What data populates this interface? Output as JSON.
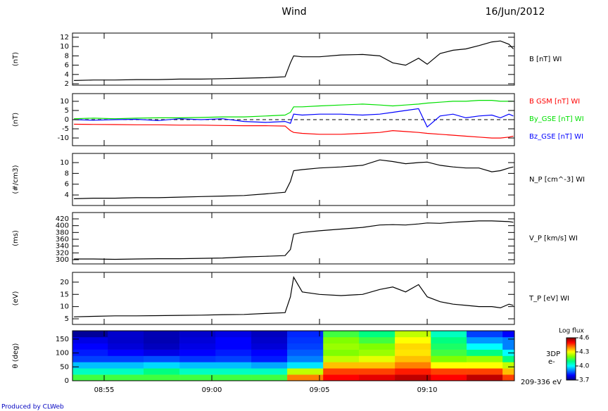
{
  "title": "Wind",
  "date": "16/Jun/2012",
  "footer": "Produced by CLWeb",
  "chart_data": [
    {
      "type": "line",
      "ylabel": "(nT)",
      "xlim": [
        533.53,
        554.05
      ],
      "ylim": [
        1.7,
        12.9
      ],
      "yticks": [
        2,
        4,
        6,
        8,
        10,
        12
      ],
      "x": [
        533.6,
        534.5,
        535.5,
        536.5,
        537.5,
        538.5,
        539.5,
        540.5,
        541.5,
        542.5,
        543.4,
        543.65,
        543.8,
        544.2,
        545,
        546,
        547,
        547.8,
        548.4,
        549,
        549.6,
        550,
        550.6,
        551.2,
        551.8,
        552.4,
        553,
        553.4,
        553.8,
        554
      ],
      "series": [
        {
          "name": "B [nT] WI",
          "color": "#000000",
          "values": [
            2.7,
            2.8,
            2.8,
            2.9,
            2.9,
            3,
            3,
            3.1,
            3.2,
            3.3,
            3.5,
            6.5,
            8,
            7.8,
            7.8,
            8.2,
            8.3,
            8,
            6.5,
            6,
            7.5,
            6.2,
            8.5,
            9.2,
            9.5,
            10.2,
            11,
            11.2,
            10.5,
            9.5
          ]
        }
      ]
    },
    {
      "type": "line",
      "ylabel": "(nT)",
      "xlim": [
        533.53,
        554.05
      ],
      "ylim": [
        -14.2,
        14.2
      ],
      "yticks": [
        -10,
        -5,
        0,
        5,
        10
      ],
      "reference_line": 0,
      "x": [
        533.6,
        534.5,
        535.5,
        536.5,
        537.5,
        538.5,
        539.5,
        540.5,
        541.5,
        542.5,
        543.4,
        543.65,
        543.8,
        544.2,
        545,
        546,
        547,
        547.8,
        548.4,
        549,
        549.6,
        550,
        550.6,
        551.2,
        551.8,
        552.4,
        553,
        553.4,
        553.8,
        554
      ],
      "series": [
        {
          "name": "B GSM [nT] WI",
          "color": "#ff0000",
          "values": [
            -2.5,
            -2.6,
            -2.7,
            -2.8,
            -2.8,
            -3,
            -3,
            -3.2,
            -3.3,
            -3.3,
            -3.5,
            -6,
            -7,
            -7.5,
            -8,
            -8,
            -7.5,
            -7,
            -6,
            -6.5,
            -7,
            -7.5,
            -8,
            -8.5,
            -9,
            -9.5,
            -10,
            -10,
            -9.5,
            -9
          ]
        },
        {
          "name": "By_GSE [nT] WI",
          "color": "#00e000",
          "values": [
            0.5,
            0.8,
            0.5,
            0.8,
            1,
            1,
            1.2,
            1.5,
            1.5,
            2,
            2.5,
            4,
            7,
            7,
            7.5,
            8,
            8.5,
            8,
            7.5,
            8,
            8.5,
            9,
            9.5,
            10,
            10,
            10.5,
            10.5,
            10,
            10,
            10
          ]
        },
        {
          "name": "Bz_GSE [nT] WI",
          "color": "#0000ff",
          "values": [
            0,
            -0.3,
            0,
            0.2,
            -0.5,
            0.5,
            0,
            0.5,
            -1,
            -1.5,
            -1,
            -2,
            3,
            2.5,
            3,
            3,
            2.5,
            3,
            4,
            5,
            6,
            -4,
            2,
            3,
            1,
            2,
            2.5,
            1,
            3,
            2
          ]
        }
      ]
    },
    {
      "type": "line",
      "ylabel": "(#/cm3)",
      "xlim": [
        533.53,
        554.05
      ],
      "ylim": [
        2.05,
        11.7
      ],
      "yticks": [
        4,
        6,
        8,
        10
      ],
      "x": [
        533.6,
        534.5,
        535.5,
        536.5,
        537.5,
        538.5,
        539.5,
        540.5,
        541.5,
        542.5,
        543.4,
        543.65,
        543.8,
        544.2,
        545,
        546,
        547,
        547.8,
        548.4,
        549,
        549.6,
        550,
        550.6,
        551.2,
        551.8,
        552.4,
        553,
        553.4,
        553.8,
        554
      ],
      "series": [
        {
          "name": "N_P [cm^-3] WI",
          "color": "#000000",
          "values": [
            3.3,
            3.4,
            3.4,
            3.5,
            3.5,
            3.6,
            3.7,
            3.8,
            3.9,
            4.2,
            4.5,
            6.5,
            8.5,
            8.7,
            9,
            9.2,
            9.5,
            10.5,
            10.2,
            9.8,
            10,
            10.1,
            9.5,
            9.2,
            9,
            9,
            8.3,
            8.5,
            9,
            9.2
          ]
        }
      ]
    },
    {
      "type": "line",
      "ylabel": "(ms)",
      "xlim": [
        533.53,
        554.05
      ],
      "ylim": [
        287.6,
        438.6
      ],
      "yticks": [
        300,
        320,
        340,
        360,
        380,
        400,
        420
      ],
      "x": [
        533.6,
        534.5,
        535.5,
        536.5,
        537.5,
        538.5,
        539.5,
        540.5,
        541.5,
        542.5,
        543.4,
        543.65,
        543.8,
        544.2,
        545,
        546,
        547,
        547.8,
        548.4,
        549,
        549.6,
        550,
        550.6,
        551.2,
        551.8,
        552.4,
        553,
        553.4,
        553.8,
        554
      ],
      "series": [
        {
          "name": "V_P [km/s] WI",
          "color": "#000000",
          "values": [
            302,
            302,
            301,
            302,
            303,
            303,
            304,
            305,
            308,
            310,
            312,
            330,
            375,
            380,
            385,
            390,
            395,
            402,
            403,
            402,
            405,
            408,
            407,
            410,
            412,
            414,
            414,
            413,
            412,
            410
          ]
        }
      ]
    },
    {
      "type": "line",
      "ylabel": "(eV)",
      "xlim": [
        533.53,
        554.05
      ],
      "ylim": [
        2.7,
        24
      ],
      "yticks": [
        5,
        10,
        15,
        20
      ],
      "x": [
        533.6,
        534.5,
        535.5,
        536.5,
        537.5,
        538.5,
        539.5,
        540.5,
        541.5,
        542.5,
        543.4,
        543.65,
        543.8,
        544.2,
        545,
        546,
        547,
        547.8,
        548.4,
        549,
        549.6,
        550,
        550.6,
        551.2,
        551.8,
        552.4,
        553,
        553.4,
        553.8,
        554
      ],
      "series": [
        {
          "name": "T_P [eV] WI",
          "color": "#000000",
          "values": [
            5.8,
            6,
            6.2,
            6.2,
            6.3,
            6.4,
            6.5,
            6.7,
            6.8,
            7.2,
            7.5,
            14,
            22,
            16,
            15,
            14.5,
            15,
            17,
            18,
            16,
            19,
            14,
            12,
            11,
            10.5,
            10,
            10,
            9.5,
            11,
            10.5
          ]
        }
      ]
    },
    {
      "type": "heatmap",
      "ylabel": "θ (deg)",
      "xlim": [
        533.53,
        554.05
      ],
      "ylim": [
        0,
        180
      ],
      "yticks": [
        0,
        50,
        100,
        150
      ],
      "xticks": [
        {
          "value": 535,
          "label": "08:55"
        },
        {
          "value": 540,
          "label": "09:00"
        },
        {
          "value": 545,
          "label": "09:05"
        },
        {
          "value": 550,
          "label": "09:10"
        }
      ],
      "x_edges": [
        533.53,
        535.17,
        536.83,
        538.5,
        540.17,
        541.83,
        543.5,
        545.17,
        546.83,
        548.5,
        550.17,
        551.83,
        553.5,
        554.05
      ],
      "y_edges": [
        0,
        22.5,
        45,
        67.5,
        90,
        112.5,
        135,
        157.5,
        180
      ],
      "z": [
        [
          4.15,
          4.15,
          4.15,
          4.15,
          4.15,
          4.15,
          4.4,
          4.5,
          4.52,
          4.55,
          4.5,
          4.55,
          4.45
        ],
        [
          4.05,
          4.05,
          4.1,
          4.05,
          4.05,
          4.05,
          4.25,
          4.45,
          4.45,
          4.48,
          4.45,
          4.45,
          4.35
        ],
        [
          3.95,
          3.95,
          3.97,
          3.95,
          3.95,
          3.93,
          3.98,
          4.35,
          4.35,
          4.4,
          4.3,
          4.3,
          4.25
        ],
        [
          3.85,
          3.85,
          3.86,
          3.84,
          3.85,
          3.82,
          3.9,
          4.25,
          4.28,
          4.35,
          4.2,
          4.22,
          4.1
        ],
        [
          3.82,
          3.8,
          3.78,
          3.8,
          3.82,
          3.8,
          3.87,
          4.2,
          4.22,
          4.32,
          4.15,
          4.1,
          4.0
        ],
        [
          3.8,
          3.77,
          3.75,
          3.78,
          3.8,
          3.77,
          3.85,
          4.22,
          4.2,
          4.33,
          4.12,
          4.0,
          3.9
        ],
        [
          3.78,
          3.76,
          3.74,
          3.77,
          3.8,
          3.76,
          3.84,
          4.2,
          4.15,
          4.3,
          4.1,
          3.92,
          3.9
        ],
        [
          3.72,
          3.76,
          3.74,
          3.76,
          3.78,
          3.75,
          3.83,
          4.15,
          4.1,
          4.25,
          4.05,
          3.85,
          3.8
        ]
      ],
      "colorbar_title": "Log flux",
      "clim": [
        3.7,
        4.6
      ],
      "cticks": [
        {
          "value": 3.7,
          "label": "3.7"
        },
        {
          "value": 4.0,
          "label": "4.0"
        },
        {
          "value": 4.3,
          "label": "4.3"
        },
        {
          "value": 4.6,
          "label": "4.6"
        }
      ],
      "colormap": [
        "#000080",
        "#0000ff",
        "#0080ff",
        "#00ffff",
        "#00ff80",
        "#80ff00",
        "#ffff00",
        "#ff8000",
        "#ff0000",
        "#800000"
      ],
      "labels": [
        "3DP",
        "e-",
        "209-336 eV"
      ]
    }
  ]
}
